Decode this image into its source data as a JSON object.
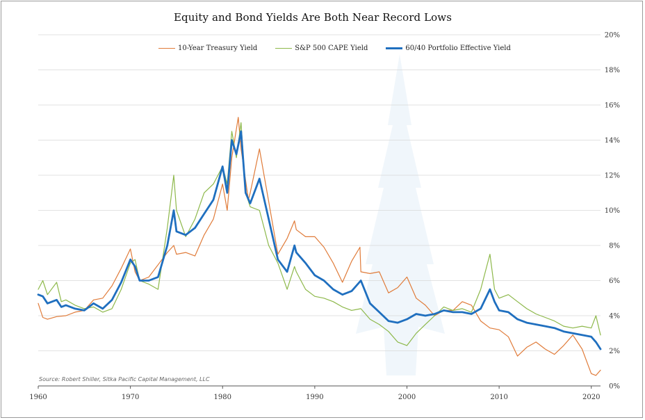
{
  "chart_data": {
    "type": "line",
    "title": "Equity and Bond Yields Are Both Near Record Lows",
    "xlabel": "",
    "ylabel": "",
    "xlim": [
      1960,
      2021
    ],
    "ylim": [
      0,
      20
    ],
    "x_ticks": [
      "1960",
      "1970",
      "1980",
      "1990",
      "2000",
      "2010",
      "2020"
    ],
    "y_ticks": [
      "0%",
      "2%",
      "4%",
      "6%",
      "8%",
      "10%",
      "12%",
      "14%",
      "16%",
      "18%",
      "20%"
    ],
    "grid": "horizontal",
    "legend_position": "top-center",
    "source": "Source: Robert Shiller, Sitka Pacific Capital Management, LLC",
    "series": [
      {
        "name": "10-Year Treasury Yield",
        "color": "#e07b39",
        "x": [
          1960,
          1960.5,
          1961,
          1962,
          1963,
          1964,
          1965,
          1966,
          1967,
          1968,
          1969,
          1970,
          1970.5,
          1971,
          1972,
          1973,
          1974,
          1974.7,
          1975,
          1976,
          1977,
          1978,
          1979,
          1980,
          1980.5,
          1981,
          1981.7,
          1982,
          1982.8,
          1983,
          1984,
          1984.5,
          1985,
          1986,
          1987,
          1987.8,
          1988,
          1989,
          1990,
          1991,
          1992,
          1993,
          1994,
          1994.9,
          1995,
          1996,
          1997,
          1998,
          1999,
          2000,
          2001,
          2002,
          2003,
          2004,
          2005,
          2006,
          2007,
          2008,
          2009,
          2010,
          2011,
          2012,
          2013,
          2014,
          2015,
          2016,
          2017,
          2018,
          2019,
          2020,
          2020.5,
          2021
        ],
        "values": [
          4.7,
          3.9,
          3.8,
          3.95,
          4.0,
          4.2,
          4.3,
          4.9,
          5.0,
          5.7,
          6.7,
          7.8,
          6.5,
          6.0,
          6.2,
          6.9,
          7.6,
          8.0,
          7.5,
          7.6,
          7.4,
          8.6,
          9.5,
          11.5,
          10.0,
          13.0,
          15.3,
          13.5,
          10.6,
          11.0,
          13.5,
          12.0,
          10.5,
          7.5,
          8.4,
          9.4,
          8.9,
          8.5,
          8.5,
          7.9,
          7.0,
          5.9,
          7.1,
          7.9,
          6.5,
          6.4,
          6.5,
          5.3,
          5.6,
          6.2,
          5.0,
          4.6,
          4.0,
          4.3,
          4.3,
          4.8,
          4.6,
          3.7,
          3.3,
          3.2,
          2.8,
          1.7,
          2.2,
          2.5,
          2.1,
          1.8,
          2.3,
          2.9,
          2.1,
          0.7,
          0.6,
          0.9
        ]
      },
      {
        "name": "S&P 500 CAPE Yield",
        "color": "#8db84a",
        "x": [
          1960,
          1960.5,
          1961,
          1962,
          1962.5,
          1963,
          1964,
          1965,
          1966,
          1967,
          1968,
          1969,
          1970,
          1970.5,
          1971,
          1972,
          1973,
          1974,
          1974.7,
          1975,
          1976,
          1977,
          1978,
          1979,
          1980,
          1980.5,
          1981,
          1981.5,
          1982,
          1982.5,
          1983,
          1984,
          1985,
          1986,
          1987,
          1987.8,
          1988,
          1989,
          1990,
          1991,
          1992,
          1993,
          1994,
          1995,
          1996,
          1997,
          1998,
          1999,
          2000,
          2001,
          2002,
          2003,
          2004,
          2005,
          2006,
          2007,
          2008,
          2009,
          2009.5,
          2010,
          2011,
          2012,
          2013,
          2014,
          2015,
          2016,
          2017,
          2018,
          2019,
          2020,
          2020.5,
          2021
        ],
        "values": [
          5.5,
          6.0,
          5.2,
          5.9,
          4.8,
          4.9,
          4.6,
          4.4,
          4.5,
          4.2,
          4.4,
          5.5,
          7.0,
          7.2,
          6.0,
          5.8,
          5.5,
          9.0,
          12.0,
          10.0,
          8.5,
          9.5,
          11.0,
          11.5,
          12.5,
          11.5,
          14.5,
          13.0,
          15.0,
          11.0,
          10.2,
          10.0,
          8.0,
          7.0,
          5.5,
          6.8,
          6.5,
          5.5,
          5.1,
          5.0,
          4.8,
          4.5,
          4.3,
          4.4,
          3.8,
          3.5,
          3.1,
          2.5,
          2.3,
          3.0,
          3.5,
          4.0,
          4.5,
          4.3,
          4.4,
          4.2,
          5.5,
          7.5,
          5.5,
          5.0,
          5.2,
          4.8,
          4.4,
          4.1,
          3.9,
          3.7,
          3.4,
          3.3,
          3.4,
          3.3,
          4.0,
          2.9
        ]
      },
      {
        "name": "60/40 Portfolio Effective Yield",
        "color": "#1f6fbf",
        "x": [
          1960,
          1960.5,
          1961,
          1962,
          1962.5,
          1963,
          1964,
          1965,
          1966,
          1967,
          1968,
          1969,
          1970,
          1970.5,
          1971,
          1972,
          1973,
          1974,
          1974.7,
          1975,
          1976,
          1977,
          1978,
          1979,
          1980,
          1980.5,
          1981,
          1981.5,
          1982,
          1982.5,
          1983,
          1984,
          1985,
          1986,
          1987,
          1987.8,
          1988,
          1989,
          1990,
          1991,
          1992,
          1993,
          1994,
          1995,
          1996,
          1997,
          1998,
          1999,
          2000,
          2001,
          2002,
          2003,
          2004,
          2005,
          2006,
          2007,
          2008,
          2009,
          2009.5,
          2010,
          2011,
          2012,
          2013,
          2014,
          2015,
          2016,
          2017,
          2018,
          2019,
          2020,
          2020.5,
          2021
        ],
        "values": [
          5.2,
          5.1,
          4.7,
          4.9,
          4.5,
          4.6,
          4.4,
          4.3,
          4.7,
          4.4,
          4.9,
          5.9,
          7.2,
          6.8,
          6.0,
          6.0,
          6.2,
          8.0,
          10.0,
          8.8,
          8.6,
          9.0,
          9.8,
          10.6,
          12.5,
          11.0,
          14.0,
          13.2,
          14.5,
          11.0,
          10.4,
          11.8,
          9.5,
          7.2,
          6.5,
          8.0,
          7.6,
          7.0,
          6.3,
          6.0,
          5.5,
          5.2,
          5.4,
          6.0,
          4.7,
          4.2,
          3.7,
          3.6,
          3.8,
          4.1,
          4.0,
          4.1,
          4.3,
          4.2,
          4.2,
          4.1,
          4.4,
          5.5,
          4.8,
          4.3,
          4.2,
          3.8,
          3.6,
          3.5,
          3.4,
          3.3,
          3.1,
          3.0,
          2.9,
          2.8,
          2.5,
          2.1
        ]
      }
    ]
  }
}
